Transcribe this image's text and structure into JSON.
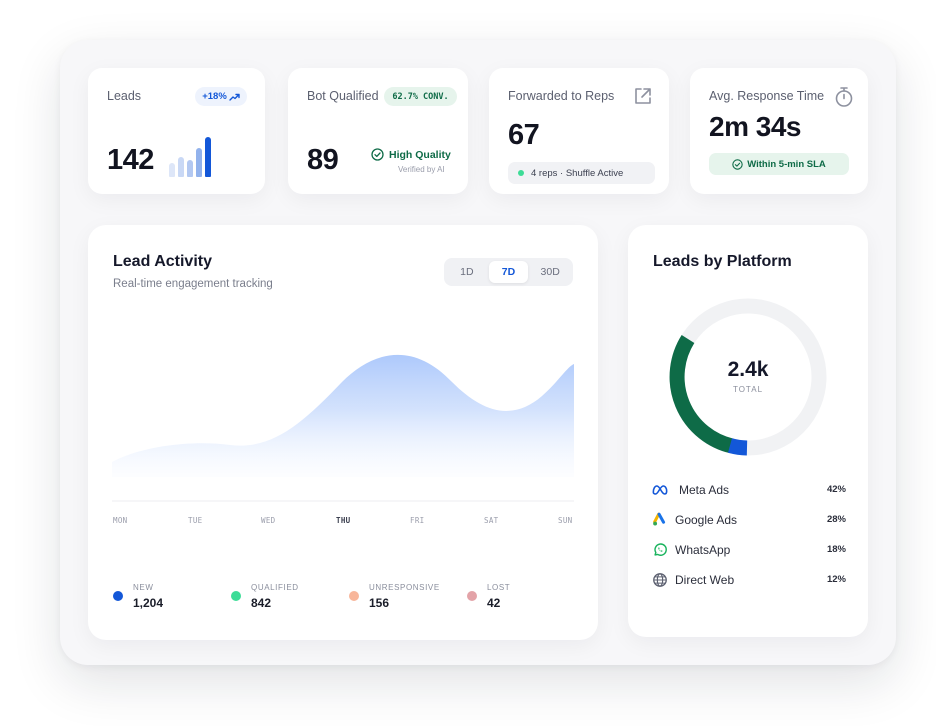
{
  "kpis": {
    "leads": {
      "label": "Leads",
      "value": "142",
      "badge": "+18%"
    },
    "bot_qualified": {
      "label": "Bot Qualified",
      "badge": "62.7% CONV.",
      "value": "89",
      "quality": "High Quality",
      "quality_sub": "Verified by AI"
    },
    "forwarded": {
      "label": "Forwarded to Reps",
      "value": "67",
      "status": "4 reps · Shuffle Active"
    },
    "response_time": {
      "label": "Avg. Response Time",
      "value_main": "2m",
      "value_sec": "34s",
      "sla": "Within 5-min SLA"
    }
  },
  "activity": {
    "title": "Lead Activity",
    "subtitle": "Real-time engagement tracking",
    "tabs": [
      "1D",
      "7D",
      "30D"
    ],
    "active_tab": "7D",
    "days": [
      "MON",
      "TUE",
      "WED",
      "THU",
      "FRI",
      "SAT",
      "SUN"
    ],
    "highlight_day": "THU",
    "legend": [
      {
        "name": "NEW",
        "value": "1,204",
        "color": "#1357d8"
      },
      {
        "name": "QUALIFIED",
        "value": "842",
        "color": "#3ddc97"
      },
      {
        "name": "UNRESPONSIVE",
        "value": "156",
        "color": "#f8b69a"
      },
      {
        "name": "LOST",
        "value": "42",
        "color": "#e3a3a8"
      }
    ]
  },
  "platform": {
    "title": "Leads by Platform",
    "total": "2.4k",
    "total_label": "TOTAL",
    "items": [
      {
        "name": "Meta Ads",
        "pct": "42%",
        "icon": "meta-icon"
      },
      {
        "name": "Google Ads",
        "pct": "28%",
        "icon": "google-ads-icon"
      },
      {
        "name": "WhatsApp",
        "pct": "18%",
        "icon": "whatsapp-icon"
      },
      {
        "name": "Direct Web",
        "pct": "12%",
        "icon": "globe-icon"
      }
    ]
  },
  "colors": {
    "accent": "#1357d8",
    "green": "#0e6b47",
    "area": "#a9c6fb"
  }
}
